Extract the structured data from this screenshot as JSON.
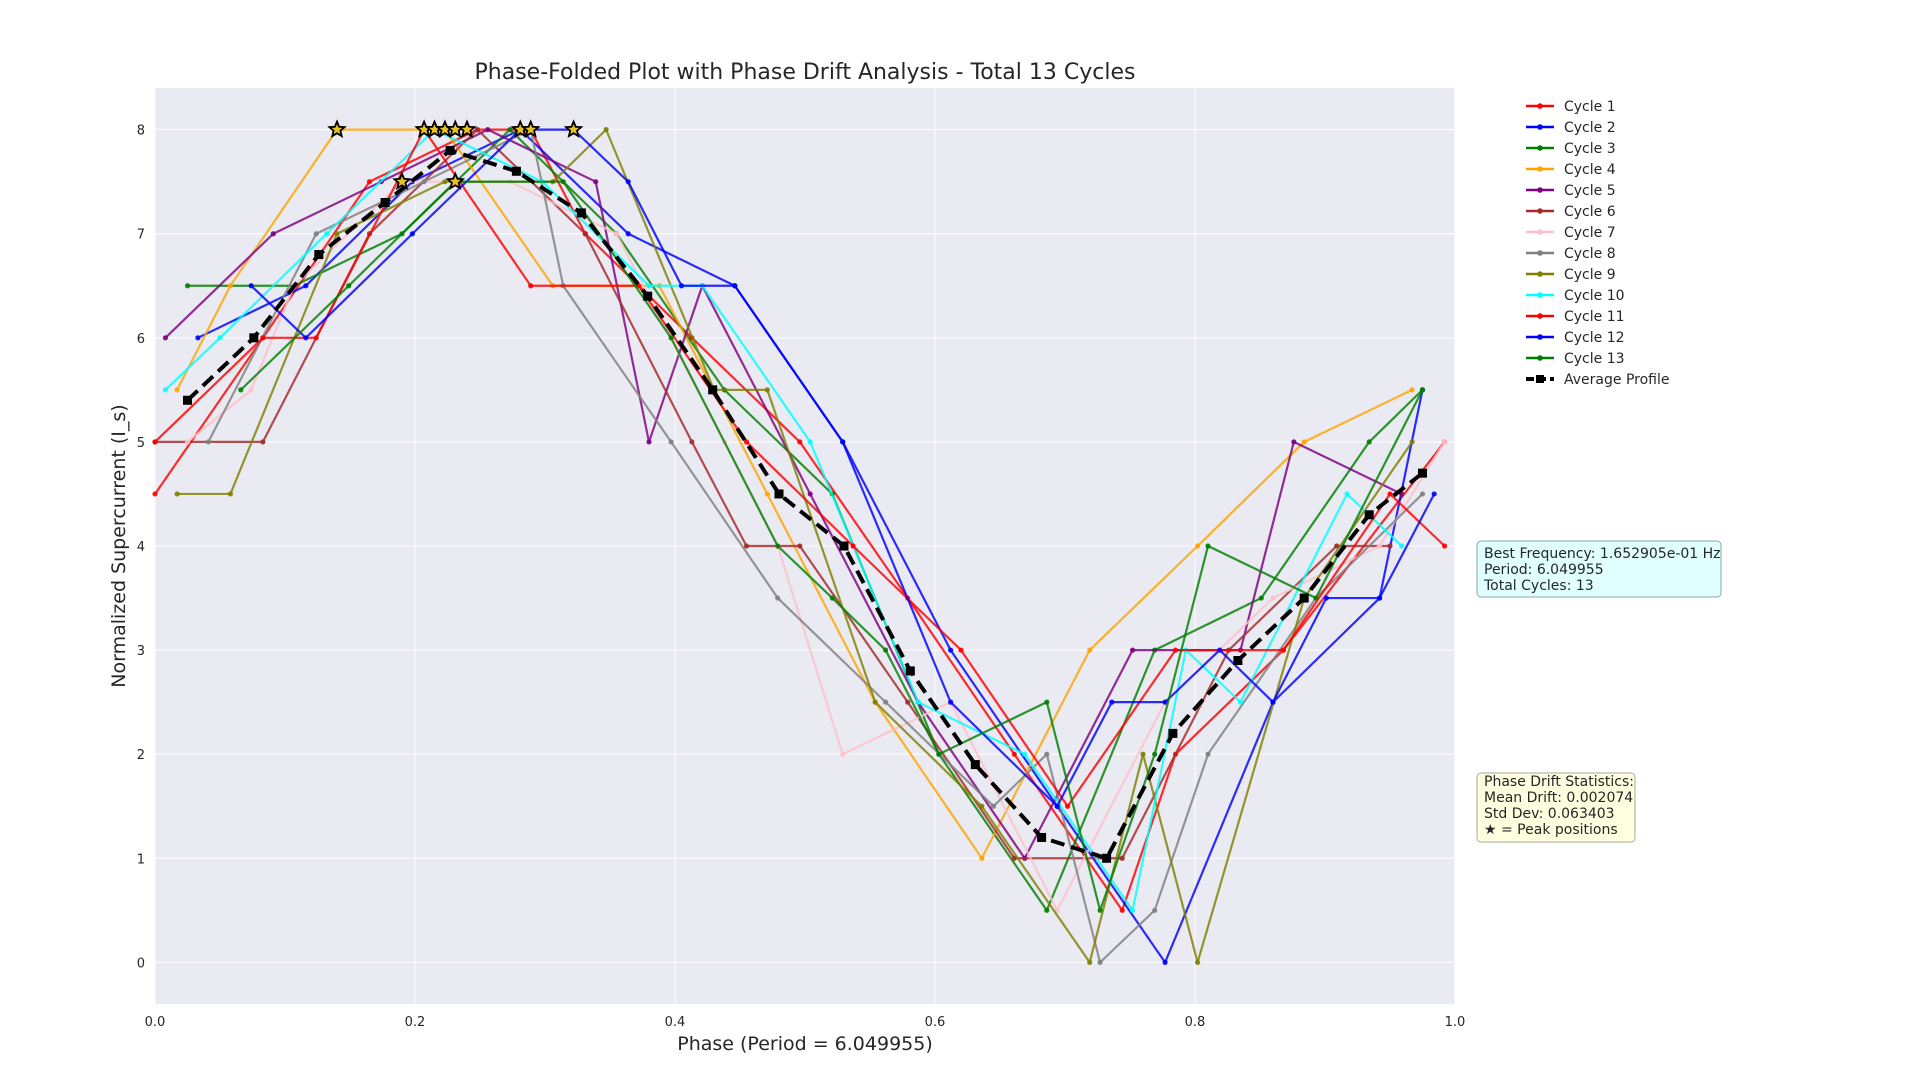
{
  "chart_data": {
    "type": "line",
    "title": "Phase-Folded Plot with Phase Drift Analysis - Total 13 Cycles",
    "xlabel": "Phase (Period = 6.049955)",
    "ylabel": "Normalized Supercurrent (I_s)",
    "xlim": [
      0.0,
      1.0
    ],
    "ylim": [
      -0.4,
      8.4
    ],
    "xticks": [
      "0.0",
      "0.2",
      "0.4",
      "0.6",
      "0.8",
      "1.0"
    ],
    "xtick_values": [
      0.0,
      0.2,
      0.4,
      0.6,
      0.8,
      1.0
    ],
    "yticks": [
      "0",
      "1",
      "2",
      "3",
      "4",
      "5",
      "6",
      "7",
      "8"
    ],
    "ytick_values": [
      0,
      1,
      2,
      3,
      4,
      5,
      6,
      7,
      8
    ],
    "grid": true,
    "legend_position": "top-right outside plot",
    "series": [
      {
        "name": "Cycle 1",
        "color": "#ff0000",
        "x": [
          0.0,
          0.083,
          0.165,
          0.248,
          0.289,
          0.331,
          0.413,
          0.496,
          0.579,
          0.661,
          0.744,
          0.785,
          0.868,
          0.992
        ],
        "y": [
          4.5,
          6.0,
          7.5,
          8.0,
          8.0,
          7.0,
          6.0,
          5.0,
          3.5,
          2.0,
          0.5,
          2.0,
          3.0,
          5.0
        ]
      },
      {
        "name": "Cycle 2",
        "color": "#0000ff",
        "x": [
          0.033,
          0.116,
          0.198,
          0.281,
          0.364,
          0.446,
          0.529,
          0.612,
          0.694,
          0.777,
          0.86,
          0.942,
          0.975
        ],
        "y": [
          6.0,
          6.5,
          7.5,
          8.0,
          7.0,
          6.5,
          5.0,
          3.0,
          1.5,
          0.0,
          2.5,
          3.5,
          5.5
        ]
      },
      {
        "name": "Cycle 3",
        "color": "#008000",
        "x": [
          0.025,
          0.107,
          0.19,
          0.273,
          0.355,
          0.438,
          0.521,
          0.603,
          0.686,
          0.769,
          0.851,
          0.934,
          0.975
        ],
        "y": [
          6.5,
          6.5,
          7.0,
          8.0,
          7.0,
          5.5,
          4.5,
          2.0,
          0.5,
          3.0,
          3.5,
          5.0,
          5.5
        ]
      },
      {
        "name": "Cycle 4",
        "color": "#ffa500",
        "x": [
          0.017,
          0.058,
          0.14,
          0.223,
          0.306,
          0.388,
          0.471,
          0.554,
          0.636,
          0.719,
          0.802,
          0.884,
          0.967
        ],
        "y": [
          5.5,
          6.5,
          8.0,
          8.0,
          6.5,
          6.5,
          4.5,
          2.5,
          1.0,
          3.0,
          4.0,
          5.0,
          5.5
        ]
      },
      {
        "name": "Cycle 5",
        "color": "#800080",
        "x": [
          0.008,
          0.091,
          0.174,
          0.256,
          0.339,
          0.38,
          0.421,
          0.504,
          0.587,
          0.669,
          0.752,
          0.835,
          0.876,
          0.959
        ],
        "y": [
          6.0,
          7.0,
          7.5,
          8.0,
          7.5,
          5.0,
          6.5,
          4.5,
          2.5,
          1.0,
          3.0,
          3.0,
          5.0,
          4.5
        ]
      },
      {
        "name": "Cycle 6",
        "color": "#a52a2a",
        "x": [
          0.0,
          0.083,
          0.165,
          0.248,
          0.331,
          0.413,
          0.455,
          0.496,
          0.579,
          0.661,
          0.744,
          0.826,
          0.909,
          0.95
        ],
        "y": [
          5.0,
          5.0,
          7.0,
          8.0,
          7.0,
          5.0,
          4.0,
          4.0,
          2.5,
          1.0,
          1.0,
          3.0,
          4.0,
          4.0
        ]
      },
      {
        "name": "Cycle 7",
        "color": "#ffc0cb",
        "x": [
          0.025,
          0.074,
          0.107,
          0.19,
          0.273,
          0.355,
          0.438,
          0.479,
          0.529,
          0.612,
          0.694,
          0.777,
          0.86,
          0.942,
          0.992
        ],
        "y": [
          5.0,
          5.5,
          6.5,
          7.5,
          7.5,
          7.0,
          5.0,
          4.0,
          2.0,
          2.5,
          0.5,
          2.5,
          3.5,
          4.0,
          5.0
        ]
      },
      {
        "name": "Cycle 8",
        "color": "#808080",
        "x": [
          0.041,
          0.124,
          0.207,
          0.289,
          0.314,
          0.397,
          0.479,
          0.562,
          0.645,
          0.686,
          0.727,
          0.769,
          0.81,
          0.893,
          0.975
        ],
        "y": [
          5.0,
          7.0,
          7.5,
          8.0,
          6.5,
          5.0,
          3.5,
          2.5,
          1.5,
          2.0,
          0.0,
          0.5,
          2.0,
          3.5,
          4.5
        ]
      },
      {
        "name": "Cycle 9",
        "color": "#808000",
        "x": [
          0.017,
          0.058,
          0.14,
          0.223,
          0.306,
          0.347,
          0.43,
          0.471,
          0.554,
          0.636,
          0.719,
          0.76,
          0.802,
          0.884,
          0.967
        ],
        "y": [
          4.5,
          4.5,
          7.0,
          7.5,
          7.5,
          8.0,
          5.5,
          5.5,
          2.5,
          1.5,
          0.0,
          2.0,
          0.0,
          3.5,
          5.0
        ]
      },
      {
        "name": "Cycle 10",
        "color": "#00ffff",
        "x": [
          0.008,
          0.05,
          0.132,
          0.215,
          0.298,
          0.38,
          0.421,
          0.504,
          0.587,
          0.669,
          0.752,
          0.793,
          0.835,
          0.917,
          0.959
        ],
        "y": [
          5.5,
          6.0,
          7.0,
          8.0,
          7.5,
          6.5,
          6.5,
          5.0,
          2.5,
          2.0,
          0.5,
          3.0,
          2.5,
          4.5,
          4.0
        ]
      },
      {
        "name": "Cycle 11",
        "color": "#ff0000",
        "x": [
          0.0,
          0.083,
          0.124,
          0.207,
          0.289,
          0.372,
          0.455,
          0.537,
          0.62,
          0.702,
          0.785,
          0.868,
          0.95,
          0.992
        ],
        "y": [
          5.0,
          6.0,
          6.0,
          8.0,
          6.5,
          6.5,
          5.0,
          4.0,
          3.0,
          1.5,
          3.0,
          3.0,
          4.5,
          4.0
        ]
      },
      {
        "name": "Cycle 12",
        "color": "#0000ff",
        "x": [
          0.074,
          0.116,
          0.198,
          0.281,
          0.322,
          0.364,
          0.405,
          0.446,
          0.529,
          0.612,
          0.694,
          0.736,
          0.777,
          0.819,
          0.86,
          0.901,
          0.942,
          0.984
        ],
        "y": [
          6.5,
          6.0,
          7.0,
          8.0,
          8.0,
          7.5,
          6.5,
          6.5,
          5.0,
          2.5,
          1.5,
          2.5,
          2.5,
          3.0,
          2.5,
          3.5,
          3.5,
          4.5
        ]
      },
      {
        "name": "Cycle 13",
        "color": "#008000",
        "x": [
          0.066,
          0.149,
          0.231,
          0.314,
          0.397,
          0.479,
          0.521,
          0.562,
          0.603,
          0.686,
          0.727,
          0.769,
          0.81,
          0.893,
          0.975
        ],
        "y": [
          5.5,
          6.5,
          7.5,
          7.5,
          6.0,
          4.0,
          3.5,
          3.0,
          2.0,
          2.5,
          0.5,
          2.0,
          4.0,
          3.5,
          5.5
        ]
      }
    ],
    "average_profile": {
      "name": "Average Profile",
      "color": "#000000",
      "x": [
        0.025,
        0.076,
        0.126,
        0.177,
        0.227,
        0.278,
        0.328,
        0.379,
        0.429,
        0.48,
        0.53,
        0.581,
        0.631,
        0.682,
        0.732,
        0.783,
        0.833,
        0.884,
        0.934,
        0.975
      ],
      "y": [
        5.4,
        6.0,
        6.8,
        7.3,
        7.8,
        7.6,
        7.2,
        6.4,
        5.5,
        4.5,
        4.0,
        2.8,
        1.9,
        1.2,
        1.0,
        2.2,
        2.9,
        3.5,
        4.3,
        4.7
      ]
    },
    "peak_markers": {
      "x": [
        0.14,
        0.207,
        0.215,
        0.223,
        0.231,
        0.24,
        0.281,
        0.289,
        0.322,
        0.231,
        0.19
      ],
      "y": [
        8.0,
        8.0,
        8.0,
        8.0,
        8.0,
        8.0,
        8.0,
        8.0,
        8.0,
        7.5,
        7.5
      ]
    },
    "info_box": {
      "lines": [
        "Best Frequency: 1.652905e-01 Hz",
        "Period: 6.049955",
        "Total Cycles: 13"
      ],
      "background": "#e0ffff"
    },
    "drift_box": {
      "lines": [
        "Phase Drift Statistics:",
        "Mean Drift: 0.002074",
        "Std Dev: 0.063403",
        "★ = Peak positions"
      ],
      "background": "#ffffe0"
    }
  },
  "style": {
    "plot_background": "#eaeaf2",
    "grid_color": "#ffffff",
    "text_color": "#262626"
  }
}
